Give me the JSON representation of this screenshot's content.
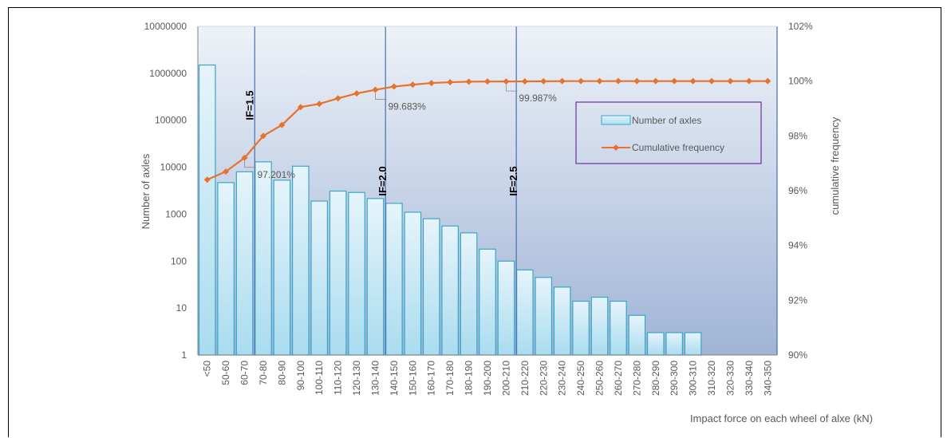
{
  "chart_data": {
    "type": "bar+line",
    "categories": [
      "<50",
      "50-60",
      "60-70",
      "70-80",
      "80-90",
      "90-100",
      "100-110",
      "110-120",
      "120-130",
      "130-140",
      "140-150",
      "150-160",
      "160-170",
      "170-180",
      "180-190",
      "190-200",
      "200-210",
      "210-220",
      "220-230",
      "230-240",
      "240-250",
      "250-260",
      "260-270",
      "270-280",
      "280-290",
      "290-300",
      "300-310",
      "310-320",
      "320-330",
      "330-340",
      "340-350"
    ],
    "series": [
      {
        "name": "Number of axles",
        "type": "bar",
        "axis": "left",
        "scale": "log",
        "values": [
          1500000,
          4700,
          8000,
          13000,
          5300,
          10500,
          1900,
          3100,
          2900,
          2150,
          1700,
          1100,
          800,
          560,
          400,
          180,
          100,
          65,
          45,
          28,
          14,
          17,
          14,
          7,
          3,
          3,
          3,
          0,
          0,
          0,
          0
        ]
      },
      {
        "name": "Cumulative frequency",
        "type": "line",
        "axis": "right",
        "values": [
          96.4,
          96.7,
          97.2,
          98.0,
          98.4,
          99.05,
          99.17,
          99.37,
          99.55,
          99.683,
          99.8,
          99.87,
          99.93,
          99.96,
          99.98,
          99.985,
          99.987,
          99.99,
          99.995,
          100,
          100,
          100,
          100,
          100,
          100,
          100,
          100,
          100,
          100,
          100,
          100
        ]
      }
    ],
    "xlabel": "Impact force on each wheel of alxe (kN)",
    "ylabel": "Number of axles",
    "y2label": "cumulative frequency",
    "y_ticks": [
      "1",
      "10",
      "100",
      "1000",
      "10000",
      "100000",
      "1000000",
      "10000000"
    ],
    "y2_ticks": [
      "90%",
      "92%",
      "94%",
      "96%",
      "98%",
      "100%",
      "102%"
    ],
    "ylim": [
      1,
      10000000
    ],
    "y2lim": [
      90,
      102
    ],
    "vertical_lines": [
      {
        "label": "IF=1.5",
        "after_category": 3
      },
      {
        "label": "IF=2.0",
        "after_category": 10
      },
      {
        "label": "IF=2.5",
        "after_category": 17
      }
    ],
    "annotations": [
      {
        "text": "97.201%",
        "category_index": 2
      },
      {
        "text": "99.683%",
        "category_index": 9
      },
      {
        "text": "99.987%",
        "category_index": 16
      }
    ],
    "legend": {
      "position": "right",
      "entries": [
        "Number of axles",
        "Cumulative frequency"
      ]
    },
    "colors": {
      "bar_fill_top": "#e6f4fb",
      "bar_fill_bottom": "#a9dcef",
      "bar_stroke": "#3aa6c6",
      "line": "#e7722b",
      "vline": "#4a6eb0",
      "legend_border": "#7030a0",
      "plot_bg_top": "#eef2f8",
      "plot_bg_bottom": "#9fb4d6"
    }
  }
}
